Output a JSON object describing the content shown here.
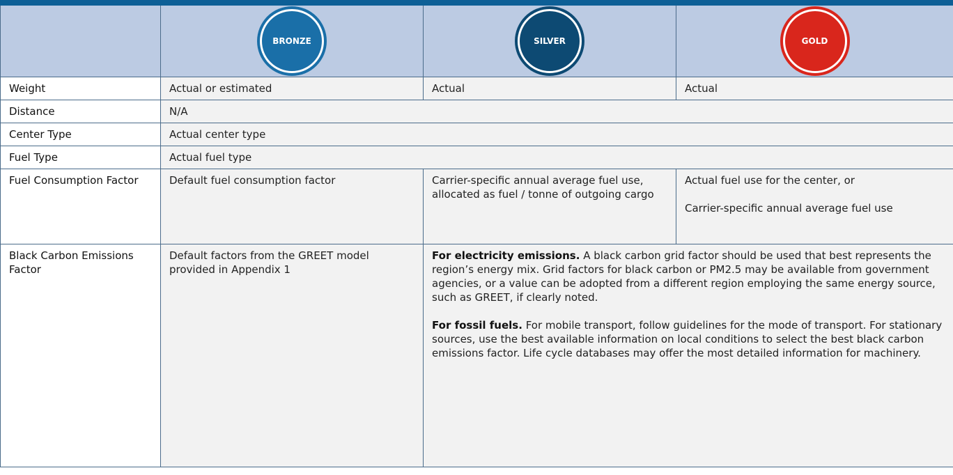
{
  "header": {
    "badges": [
      "BRONZE",
      "SILVER",
      "GOLD"
    ]
  },
  "rows": [
    {
      "label": "Weight",
      "cells": [
        "Actual or estimated",
        "Actual",
        "Actual"
      ]
    },
    {
      "label": "Distance",
      "cells": [
        "N/A"
      ]
    },
    {
      "label": "Center Type",
      "cells": [
        "Actual center type"
      ]
    },
    {
      "label": "Fuel Type",
      "cells": [
        "Actual fuel type"
      ]
    },
    {
      "label": "Fuel Consumption Factor",
      "cells": [
        "Default fuel consumption factor",
        "Carrier-specific annual average fuel use, allocated as fuel / tonne of outgoing cargo",
        [
          "Actual fuel use for the center, or",
          "Carrier-specific annual average fuel use"
        ]
      ]
    },
    {
      "label": "Black Carbon Emissions Factor",
      "cells": [
        "Default factors from the GREET model provided in Appendix 1",
        [
          {
            "lead": "For electricity emissions.",
            "text": "A black carbon grid factor should be used that best represents the region’s energy mix. Grid factors for black carbon or PM2.5 may be available from government agencies, or a value can be adopted from a different region employing the same energy source, such as GREET, if clearly noted."
          },
          {
            "lead": "For fossil fuels.",
            "text": "For mobile transport, follow guidelines for the mode of transport. For stationary sources, use the best available information on local conditions to select the best black carbon emissions factor. Life cycle databases may offer the most detailed information for machinery."
          }
        ]
      ]
    }
  ]
}
